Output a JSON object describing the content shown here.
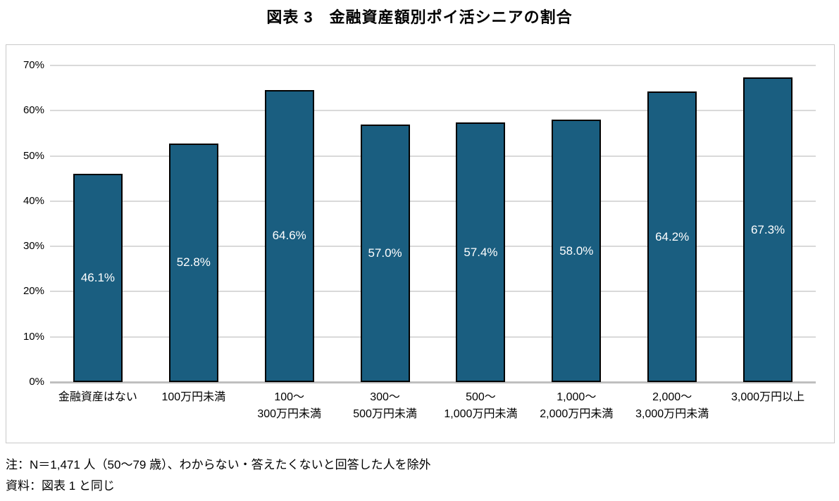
{
  "title": "図表 3　金融資産額別ポイ活シニアの割合",
  "notes": {
    "note1": "注：N＝1,471 人（50～79 歳）、わからない・答えたくないと回答した人を除外",
    "note2": "資料：図表 1 と同じ"
  },
  "chart_data": {
    "type": "bar",
    "title": "図表 3　金融資産額別ポイ活シニアの割合",
    "categories": [
      "金融資産はない",
      "100万円未満",
      "100～\n300万円未満",
      "300～\n500万円未満",
      "500～\n1,000万円未満",
      "1,000～\n2,000万円未満",
      "2,000～\n3,000万円未満",
      "3,000万円以上"
    ],
    "values": [
      46.1,
      52.8,
      64.6,
      57.0,
      57.4,
      58.0,
      64.2,
      67.3
    ],
    "value_labels": [
      "46.1%",
      "52.8%",
      "64.6%",
      "57.0%",
      "57.4%",
      "58.0%",
      "64.2%",
      "67.3%"
    ],
    "xlabel": "",
    "ylabel": "",
    "ylim": [
      0,
      70
    ],
    "ytick_step": 10,
    "ytick_labels": [
      "0%",
      "10%",
      "20%",
      "30%",
      "40%",
      "50%",
      "60%",
      "70%"
    ],
    "grid": true,
    "legend": "none",
    "bar_color": "#1a5e80",
    "bar_border_color": "#000000",
    "value_label_color": "#ffffff",
    "gridline_color": "#d9d9d9",
    "axis_line_color": "#bfbfbf"
  }
}
